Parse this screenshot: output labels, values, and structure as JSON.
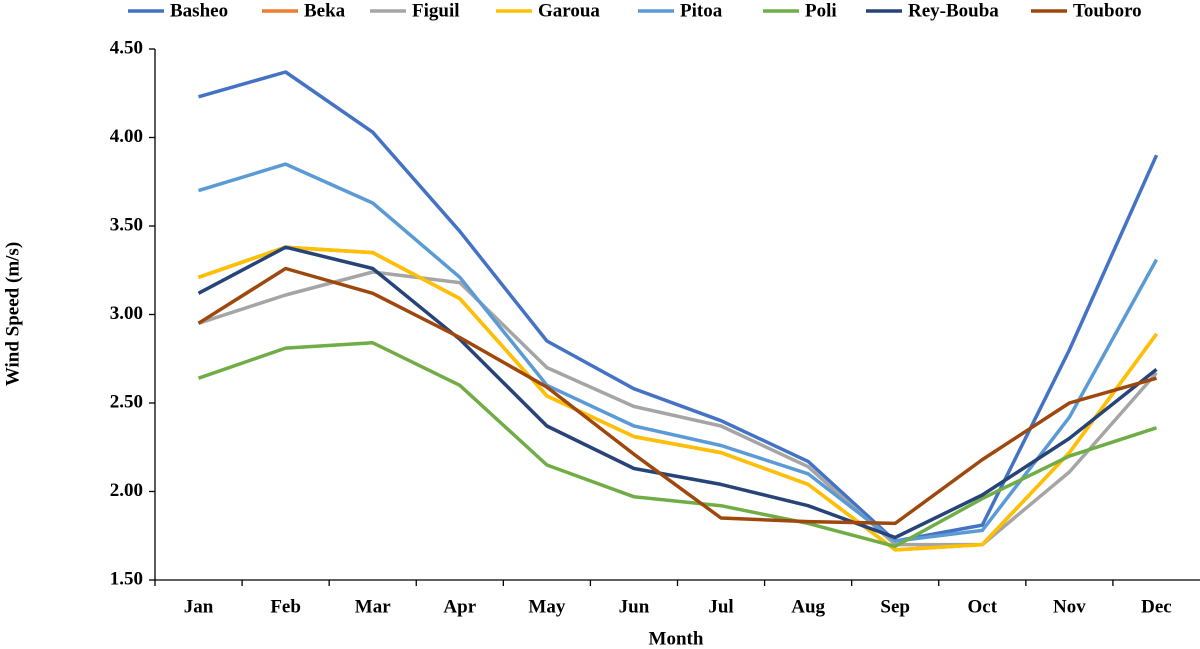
{
  "chart_data": {
    "type": "line",
    "x_label": "Month",
    "y_label": "Wind Speed (m/s)",
    "categories": [
      "Jan",
      "Feb",
      "Mar",
      "Apr",
      "May",
      "Jun",
      "Jul",
      "Aug",
      "Sep",
      "Oct",
      "Nov",
      "Dec"
    ],
    "ylim": [
      1.5,
      4.5
    ],
    "yticks": [
      {
        "value": 1.5,
        "label": "1.50"
      },
      {
        "value": 2,
        "label": "2.00"
      },
      {
        "value": 2.5,
        "label": "2.50"
      },
      {
        "value": 3,
        "label": "3.00"
      },
      {
        "value": 3.5,
        "label": "3.50"
      },
      {
        "value": 4,
        "label": "4.00"
      },
      {
        "value": 4.5,
        "label": "4.50"
      }
    ],
    "legend": "top",
    "series": [
      {
        "name": "Basheo",
        "color": "#4472c4",
        "values": [
          4.23,
          4.37,
          4.03,
          3.47,
          2.85,
          2.58,
          2.4,
          2.17,
          1.72,
          1.81,
          2.8,
          3.9
        ]
      },
      {
        "name": "Beka",
        "color": "#ed7d31",
        "values": [
          3.21,
          3.38,
          3.35,
          3.09,
          2.54,
          2.31,
          2.22,
          2.04,
          1.67,
          1.7,
          2.22,
          2.89
        ]
      },
      {
        "name": "Figuil",
        "color": "#a5a5a5",
        "values": [
          2.95,
          3.11,
          3.24,
          3.18,
          2.7,
          2.48,
          2.37,
          2.14,
          1.7,
          1.7,
          2.11,
          2.67
        ]
      },
      {
        "name": "Garoua",
        "color": "#ffc000",
        "values": [
          3.21,
          3.38,
          3.35,
          3.09,
          2.54,
          2.31,
          2.22,
          2.04,
          1.67,
          1.7,
          2.22,
          2.89
        ]
      },
      {
        "name": "Pitoa",
        "color": "#5b9bd5",
        "values": [
          3.7,
          3.85,
          3.63,
          3.21,
          2.6,
          2.37,
          2.26,
          2.1,
          1.72,
          1.78,
          2.42,
          3.31
        ]
      },
      {
        "name": "Poli",
        "color": "#70ad47",
        "values": [
          2.64,
          2.81,
          2.84,
          2.6,
          2.15,
          1.97,
          1.92,
          1.82,
          1.69,
          1.96,
          2.2,
          2.36
        ]
      },
      {
        "name": "Rey-Bouba",
        "color": "#264478",
        "values": [
          3.12,
          3.38,
          3.26,
          2.86,
          2.37,
          2.13,
          2.04,
          1.92,
          1.74,
          1.98,
          2.3,
          2.69
        ]
      },
      {
        "name": "Touboro",
        "color": "#9e480e",
        "values": [
          2.95,
          3.26,
          3.12,
          2.87,
          2.59,
          2.21,
          1.85,
          1.83,
          1.82,
          2.18,
          2.5,
          2.64
        ]
      }
    ]
  }
}
